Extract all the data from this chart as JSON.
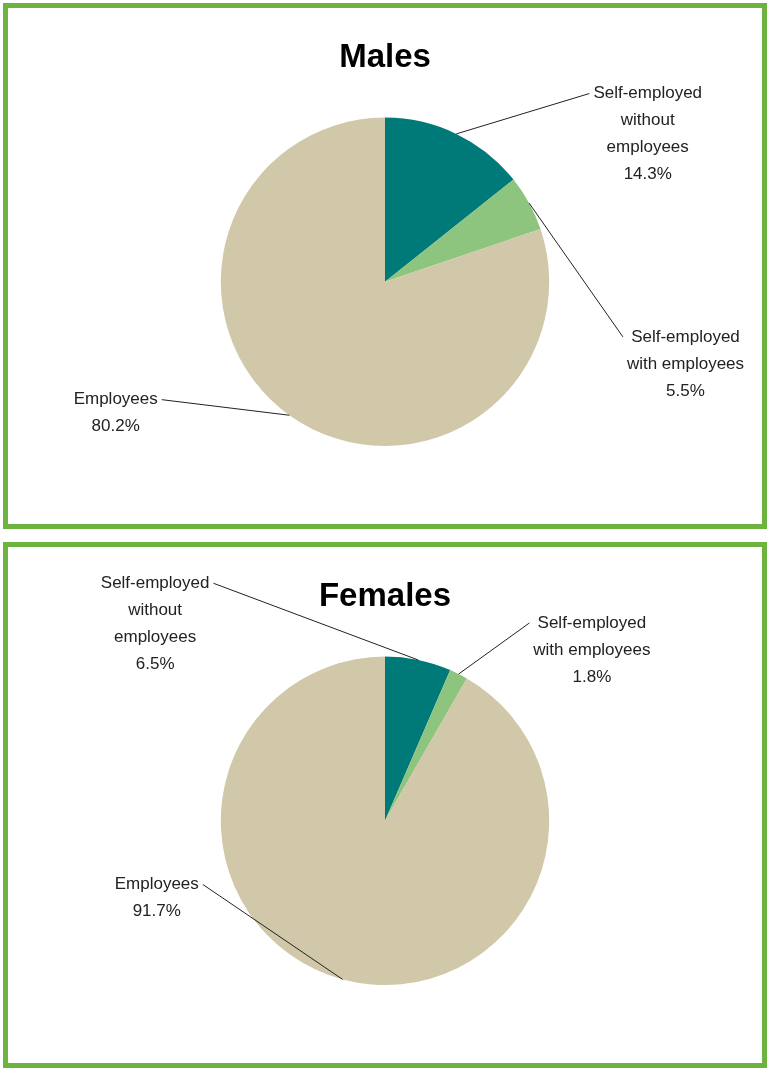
{
  "chart_data": [
    {
      "type": "pie",
      "title": "Males",
      "categories": [
        "Self-employed without employees",
        "Self-employed with employees",
        "Employees"
      ],
      "values": [
        14.3,
        5.5,
        80.2
      ],
      "colors": [
        "#007a78",
        "#8dc47e",
        "#d0c8a8"
      ],
      "value_labels": [
        "14.3%",
        "5.5%",
        "80.2%"
      ],
      "legend": false
    },
    {
      "type": "pie",
      "title": "Females",
      "categories": [
        "Self-employed without employees",
        "Self-employed with employees",
        "Employees"
      ],
      "values": [
        6.5,
        1.8,
        91.7
      ],
      "colors": [
        "#007a78",
        "#8dc47e",
        "#d0c8a8"
      ],
      "value_labels": [
        "6.5%",
        "1.8%",
        "91.7%"
      ],
      "legend": false
    }
  ]
}
